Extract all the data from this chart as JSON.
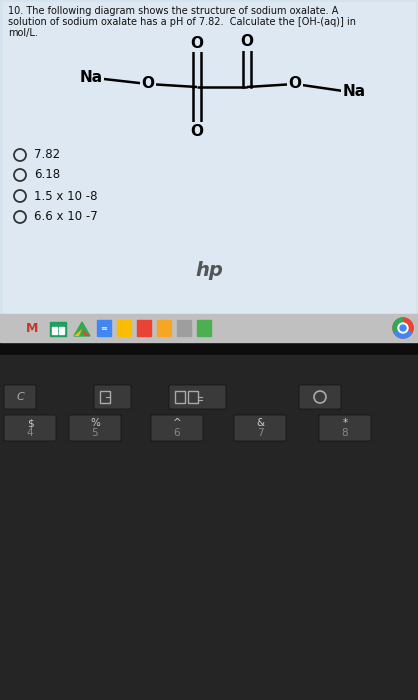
{
  "q_line1": "10. The following diagram shows the structure of sodium oxalate. A",
  "q_line2": "solution of sodium oxalate has a pH of 7.82.  Calculate the [OH-(aq)] in",
  "q_line3": "mol/L.",
  "options": [
    "7.82",
    "6.18",
    "1.5 x 10 -8",
    "6.6 x 10 -7"
  ],
  "bg_laptop": "#1c1c1c",
  "bg_screen_bezel": "#111111",
  "bg_content": "#dce6f0",
  "bg_taskbar": "#c8c8c8",
  "text_dark": "#111111",
  "fig_w": 4.18,
  "fig_h": 7.0,
  "dpi": 100
}
